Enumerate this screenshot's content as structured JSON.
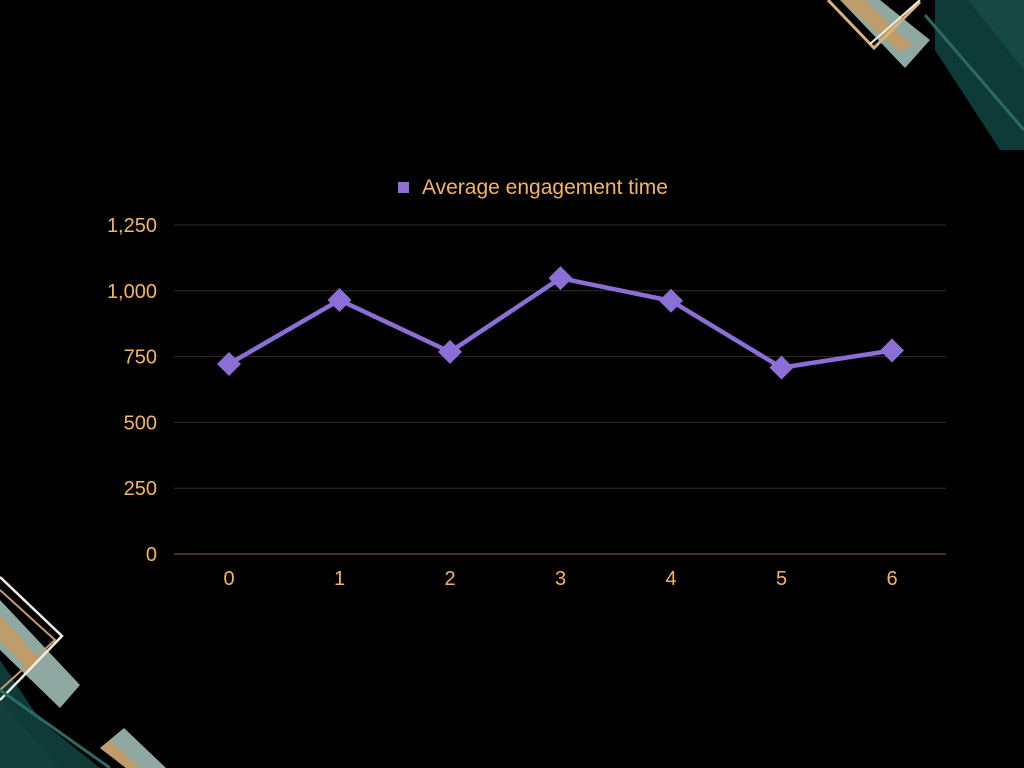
{
  "chart_data": {
    "type": "line",
    "x": [
      0,
      1,
      2,
      3,
      4,
      5,
      6
    ],
    "categories": [
      "0",
      "1",
      "2",
      "3",
      "4",
      "5",
      "6"
    ],
    "series": [
      {
        "name": "Average engagement time",
        "values": [
          722,
          965,
          768,
          1048,
          962,
          708,
          773
        ]
      }
    ],
    "ylim": [
      0,
      1250
    ],
    "yticks": [
      0,
      250,
      500,
      750,
      1000,
      1250
    ],
    "ytick_labels": [
      "0",
      "250",
      "500",
      "750",
      "1,000",
      "1,250"
    ],
    "xtick_labels": [
      "0",
      "1",
      "2",
      "3",
      "4",
      "5",
      "6"
    ],
    "grid": true,
    "legend_position": "top-center",
    "marker": "diamond"
  },
  "colors": {
    "background": "#000000",
    "series": "#8b6fd6",
    "text": "#f6b55c",
    "grid": "#3a2a1f",
    "axis": "#6e5032",
    "deco_dark": "#0e3b38",
    "deco_sage": "#8fa9a2",
    "deco_gold": "#c79a62",
    "deco_cream": "#f2ede4"
  }
}
